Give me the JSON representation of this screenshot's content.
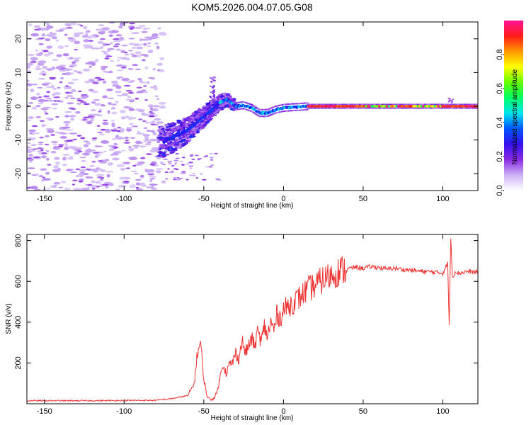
{
  "chart_data": [
    {
      "type": "heatmap",
      "title": "KOM5.2026.004.07.05.G08",
      "xlabel": "Height of straight line (km)",
      "ylabel": "Frequency (Hz)",
      "xlim": [
        -161,
        122
      ],
      "ylim": [
        -25,
        25
      ],
      "x_ticks": [
        -150,
        -100,
        -50,
        0,
        50,
        100
      ],
      "y_ticks": [
        -20,
        -10,
        0,
        10,
        20
      ],
      "colorbar": {
        "label": "Normalized spectral amplitude",
        "range": [
          0,
          1
        ],
        "ticks": [
          "0.0",
          "0.2",
          "0.4",
          "0.6",
          "0.8"
        ],
        "colormap": [
          "#ffffff",
          "#cdb2f5",
          "#8a2be2",
          "#3311ee",
          "#0055ff",
          "#00e5ee",
          "#00ff66",
          "#66ff00",
          "#ffff00",
          "#ff9900",
          "#ff1a1a",
          "#ff1493"
        ]
      },
      "ridge": {
        "x": [
          -75,
          -60,
          -50,
          -45,
          -40,
          -35,
          -30,
          -25,
          -20,
          -15,
          -10,
          -5,
          0,
          5,
          10,
          15,
          20,
          30,
          50,
          80,
          100,
          122
        ],
        "y": [
          -10.5,
          -7,
          -3,
          -1,
          1,
          2,
          0,
          0.3,
          -0.5,
          -2,
          -2,
          -1,
          -0.5,
          -0.3,
          -0.2,
          0,
          0,
          0,
          0,
          0,
          0,
          0
        ]
      }
    },
    {
      "type": "line",
      "xlabel": "Height of straight line (km)",
      "ylabel": "SNR (v/v)",
      "xlim": [
        -161,
        122
      ],
      "ylim": [
        0,
        830
      ],
      "x_ticks": [
        -150,
        -100,
        -50,
        0,
        50,
        100
      ],
      "y_ticks": [
        200,
        400,
        600,
        800
      ],
      "line_color": "#ee3333",
      "series": [
        {
          "name": "SNR",
          "x": [
            -161,
            -120,
            -80,
            -70,
            -60,
            -56,
            -54,
            -52,
            -50,
            -48,
            -46,
            -44,
            -42,
            -40,
            -38,
            -36,
            -34,
            -32,
            -30,
            -28,
            -26,
            -24,
            -22,
            -20,
            -18,
            -16,
            -14,
            -12,
            -10,
            -8,
            -6,
            -4,
            -2,
            0,
            5,
            10,
            15,
            20,
            25,
            30,
            35,
            40,
            45,
            50,
            55,
            60,
            65,
            70,
            75,
            80,
            85,
            90,
            95,
            100,
            103,
            104,
            105,
            106,
            108,
            110,
            115,
            122
          ],
          "y": [
            15,
            15,
            17,
            25,
            40,
            100,
            250,
            300,
            120,
            40,
            20,
            25,
            50,
            120,
            200,
            150,
            190,
            200,
            250,
            220,
            310,
            250,
            280,
            320,
            280,
            360,
            300,
            380,
            330,
            400,
            360,
            440,
            420,
            460,
            490,
            520,
            560,
            580,
            610,
            630,
            650,
            660,
            670,
            665,
            672,
            668,
            660,
            665,
            658,
            655,
            650,
            648,
            645,
            640,
            690,
            390,
            820,
            620,
            650,
            640,
            648,
            645
          ]
        }
      ]
    }
  ]
}
